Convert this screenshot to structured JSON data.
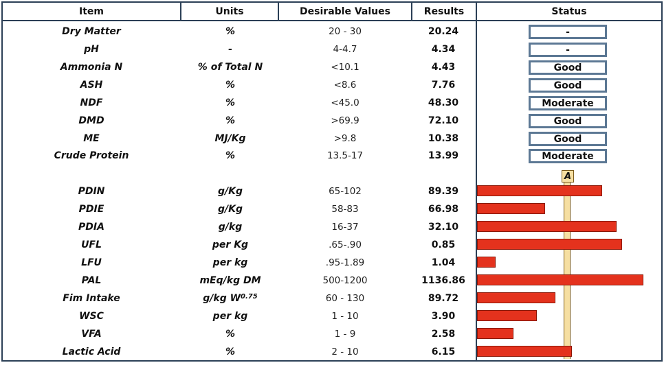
{
  "headers": {
    "item": "Item",
    "units": "Units",
    "desirable": "Desirable Values",
    "results": "Results",
    "status": "Status"
  },
  "status_rows": [
    {
      "item": "Dry Matter",
      "units": "%",
      "desirable": "20 - 30",
      "result": "20.24",
      "status": "-"
    },
    {
      "item": "pH",
      "units": "-",
      "desirable": "4-4.7",
      "result": "4.34",
      "status": "-"
    },
    {
      "item": "Ammonia N",
      "units": "% of Total N",
      "desirable": "<10.1",
      "result": "4.43",
      "status": "Good"
    },
    {
      "item": "ASH",
      "units": "%",
      "desirable": "<8.6",
      "result": "7.76",
      "status": "Good"
    },
    {
      "item": "NDF",
      "units": "%",
      "desirable": "<45.0",
      "result": "48.30",
      "status": "Moderate"
    },
    {
      "item": "DMD",
      "units": "%",
      "desirable": ">69.9",
      "result": "72.10",
      "status": "Good"
    },
    {
      "item": "ME",
      "units": "MJ/Kg",
      "desirable": ">9.8",
      "result": "10.38",
      "status": "Good"
    },
    {
      "item": "Crude Protein",
      "units": "%",
      "desirable": "13.5-17",
      "result": "13.99",
      "status": "Moderate"
    }
  ],
  "guide_label": "A",
  "bar_rows": [
    {
      "item": "PDIN",
      "units": "g/Kg",
      "desirable": "65-102",
      "result": "89.39",
      "bar_fraction": 0.75
    },
    {
      "item": "PDIE",
      "units": "g/Kg",
      "desirable": "58-83",
      "result": "66.98",
      "bar_fraction": 0.41
    },
    {
      "item": "PDIA",
      "units": "g/kg",
      "desirable": "16-37",
      "result": "32.10",
      "bar_fraction": 0.84
    },
    {
      "item": "UFL",
      "units": "per Kg",
      "desirable": ".65-.90",
      "result": "0.85",
      "bar_fraction": 0.87
    },
    {
      "item": "LFU",
      "units": "per kg",
      "desirable": ".95-1.89",
      "result": "1.04",
      "bar_fraction": 0.11
    },
    {
      "item": "PAL",
      "units": "mEq/kg DM",
      "desirable": "500-1200",
      "result": "1136.86",
      "bar_fraction": 1.0
    },
    {
      "item": "Fim Intake",
      "units": "g/kg W",
      "units_sup": "0.75",
      "desirable": "60 - 130",
      "result": "89.72",
      "bar_fraction": 0.47
    },
    {
      "item": "WSC",
      "units": "per kg",
      "desirable": "1 - 10",
      "result": "3.90",
      "bar_fraction": 0.36
    },
    {
      "item": "VFA",
      "units": "%",
      "desirable": "1 - 9",
      "result": "2.58",
      "bar_fraction": 0.22
    },
    {
      "item": "Lactic Acid",
      "units": "%",
      "desirable": "2 - 10",
      "result": "6.15",
      "bar_fraction": 0.57
    }
  ]
}
